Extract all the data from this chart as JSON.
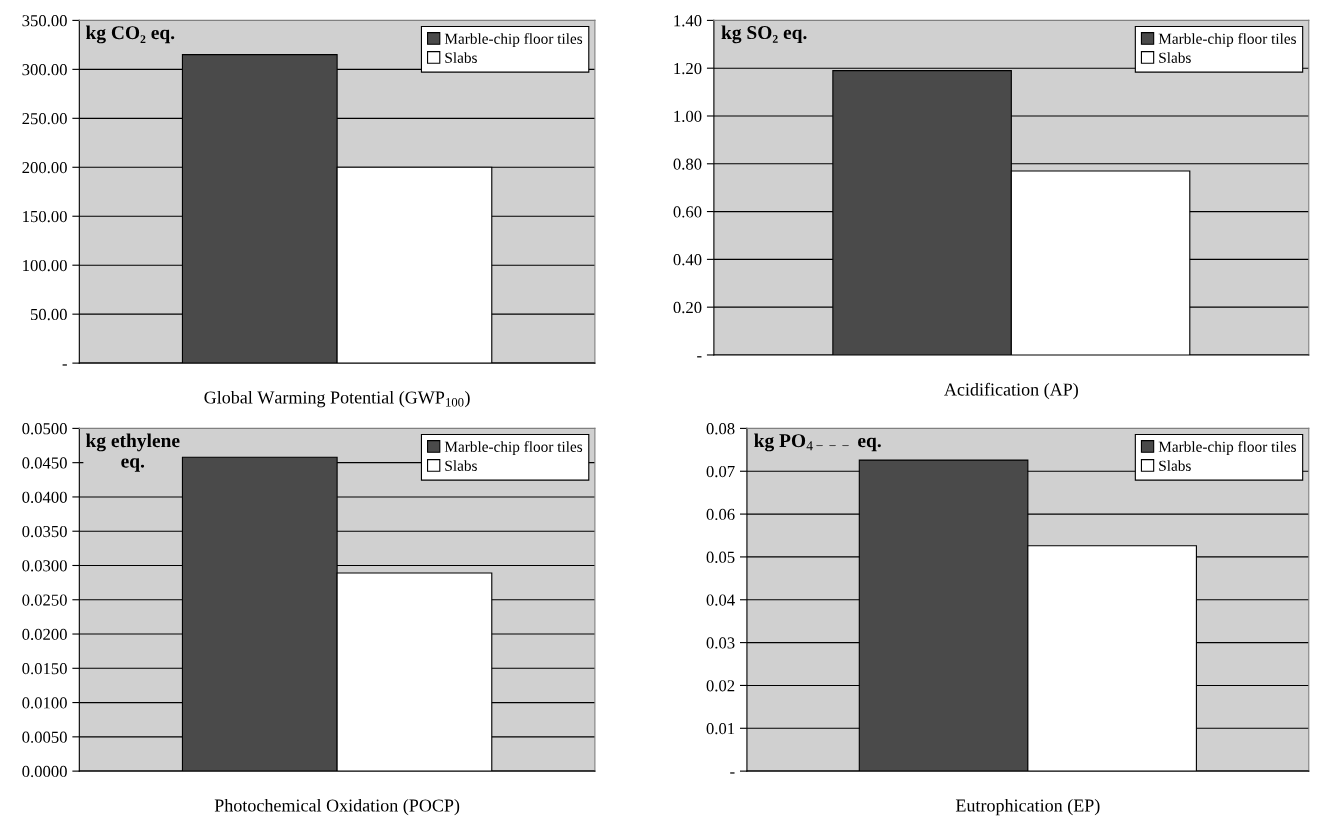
{
  "chart_data": [
    {
      "type": "bar",
      "ylabel": "kg CO₂ eq.",
      "categories": [
        "Global Warming Potential (GWP$_{100}$)"
      ],
      "series": [
        {
          "name": "Marble-chip floor tiles",
          "color": "#4a4a4a",
          "values": [
            315
          ]
        },
        {
          "name": "Slabs",
          "color": "#ffffff",
          "values": [
            200
          ]
        }
      ],
      "ylim": [
        0,
        350
      ],
      "yticks": [
        {
          "value": 0,
          "label": "-"
        },
        {
          "value": 50,
          "label": "50.00"
        },
        {
          "value": 100,
          "label": "100.00"
        },
        {
          "value": 150,
          "label": "150.00"
        },
        {
          "value": 200,
          "label": "200.00"
        },
        {
          "value": 250,
          "label": "250.00"
        },
        {
          "value": 300,
          "label": "300.00"
        },
        {
          "value": 350,
          "label": "350.00"
        }
      ],
      "grid": "y",
      "legend": "top right"
    },
    {
      "type": "bar",
      "ylabel": "kg SO₂ eq.",
      "categories": [
        "Acidification (AP)"
      ],
      "series": [
        {
          "name": "Marble-chip floor tiles",
          "color": "#4a4a4a",
          "values": [
            1.19
          ]
        },
        {
          "name": "Slabs",
          "color": "#ffffff",
          "values": [
            0.77
          ]
        }
      ],
      "ylim": [
        0,
        1.4
      ],
      "yticks": [
        {
          "value": 0,
          "label": "-"
        },
        {
          "value": 0.2,
          "label": "0.20"
        },
        {
          "value": 0.4,
          "label": "0.40"
        },
        {
          "value": 0.6,
          "label": "0.60"
        },
        {
          "value": 0.8,
          "label": "0.80"
        },
        {
          "value": 1.0,
          "label": "1.00"
        },
        {
          "value": 1.2,
          "label": "1.20"
        },
        {
          "value": 1.4,
          "label": "1.40"
        }
      ],
      "grid": "y",
      "legend": "top right"
    },
    {
      "type": "bar",
      "ylabel": "kg ethylene\neq.",
      "categories": [
        "Photochemical Oxidation (POCP)"
      ],
      "series": [
        {
          "name": "Marble-chip floor tiles",
          "color": "#4a4a4a",
          "values": [
            0.0458
          ]
        },
        {
          "name": "Slabs",
          "color": "#ffffff",
          "values": [
            0.0289
          ]
        }
      ],
      "ylim": [
        0,
        0.05
      ],
      "yticks": [
        {
          "value": 0,
          "label": "0.0000"
        },
        {
          "value": 0.005,
          "label": "0.0050"
        },
        {
          "value": 0.01,
          "label": "0.0100"
        },
        {
          "value": 0.015,
          "label": "0.0150"
        },
        {
          "value": 0.02,
          "label": "0.0200"
        },
        {
          "value": 0.025,
          "label": "0.0250"
        },
        {
          "value": 0.03,
          "label": "0.0300"
        },
        {
          "value": 0.035,
          "label": "0.0350"
        },
        {
          "value": 0.04,
          "label": "0.0400"
        },
        {
          "value": 0.045,
          "label": "0.0450"
        },
        {
          "value": 0.05,
          "label": "0.0500"
        }
      ],
      "grid": "y",
      "legend": "top right"
    },
    {
      "type": "bar",
      "ylabel": "kg PO$_{4−−−}$ eq.",
      "categories": [
        "Eutrophication (EP)"
      ],
      "series": [
        {
          "name": "Marble-chip floor tiles",
          "color": "#4a4a4a",
          "values": [
            0.0726
          ]
        },
        {
          "name": "Slabs",
          "color": "#ffffff",
          "values": [
            0.0526
          ]
        }
      ],
      "ylim": [
        0,
        0.08
      ],
      "yticks": [
        {
          "value": 0,
          "label": "-"
        },
        {
          "value": 0.01,
          "label": "0.01"
        },
        {
          "value": 0.02,
          "label": "0.02"
        },
        {
          "value": 0.03,
          "label": "0.03"
        },
        {
          "value": 0.04,
          "label": "0.04"
        },
        {
          "value": 0.05,
          "label": "0.05"
        },
        {
          "value": 0.06,
          "label": "0.06"
        },
        {
          "value": 0.07,
          "label": "0.07"
        },
        {
          "value": 0.08,
          "label": "0.08"
        }
      ],
      "grid": "y",
      "legend": "top right"
    }
  ]
}
